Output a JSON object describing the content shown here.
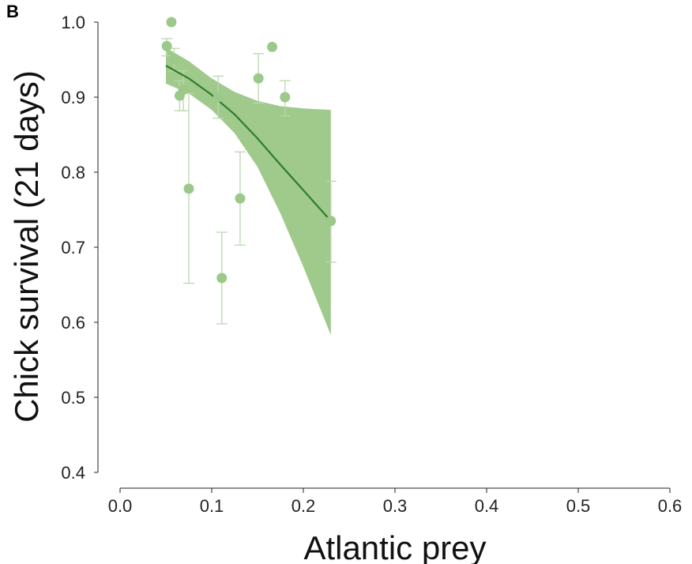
{
  "panel_label": "B",
  "chart_data": {
    "type": "scatter",
    "xlabel": "Atlantic prey",
    "ylabel": "Chick survival (21 days)",
    "xlim": [
      0.0,
      0.6
    ],
    "ylim": [
      0.4,
      1.0
    ],
    "x_ticks": [
      0.0,
      0.1,
      0.2,
      0.3,
      0.4,
      0.5,
      0.6
    ],
    "x_tick_labels": [
      "0.0",
      "0.1",
      "0.2",
      "0.3",
      "0.4",
      "0.5",
      "0.6"
    ],
    "y_ticks": [
      0.4,
      0.5,
      0.6,
      0.7,
      0.8,
      0.9,
      1.0
    ],
    "y_tick_labels": [
      "0.4",
      "0.5",
      "0.6",
      "0.7",
      "0.8",
      "0.9",
      "1.0"
    ],
    "grid": false,
    "legend": "none",
    "colors": {
      "points": "#9cc98a",
      "errorbars": "#b9d8ad",
      "fit_line": "#2e7d2e",
      "ci_band": "#8fbf78"
    },
    "points": [
      {
        "x": 0.051,
        "y": 0.968,
        "ylow": 0.955,
        "yhigh": 0.978
      },
      {
        "x": 0.056,
        "y": 1.0,
        "ylow": 1.0,
        "yhigh": 1.0
      },
      {
        "x": 0.059,
        "y": 0.951,
        "ylow": 0.935,
        "yhigh": 0.965
      },
      {
        "x": 0.065,
        "y": 0.902,
        "ylow": 0.882,
        "yhigh": 0.922
      },
      {
        "x": 0.069,
        "y": 0.91,
        "ylow": 0.882,
        "yhigh": 0.935
      },
      {
        "x": 0.075,
        "y": 0.778,
        "ylow": 0.652,
        "yhigh": 0.905
      },
      {
        "x": 0.107,
        "y": 0.9,
        "ylow": 0.872,
        "yhigh": 0.928
      },
      {
        "x": 0.111,
        "y": 0.659,
        "ylow": 0.598,
        "yhigh": 0.72
      },
      {
        "x": 0.131,
        "y": 0.765,
        "ylow": 0.703,
        "yhigh": 0.827
      },
      {
        "x": 0.151,
        "y": 0.925,
        "ylow": 0.892,
        "yhigh": 0.958
      },
      {
        "x": 0.166,
        "y": 0.967,
        "ylow": 0.967,
        "yhigh": 0.967
      },
      {
        "x": 0.18,
        "y": 0.9,
        "ylow": 0.875,
        "yhigh": 0.922
      },
      {
        "x": 0.23,
        "y": 0.735,
        "ylow": 0.68,
        "yhigh": 0.788
      }
    ],
    "fit": {
      "x": [
        0.05,
        0.075,
        0.1,
        0.125,
        0.15,
        0.175,
        0.2,
        0.23
      ],
      "y": [
        0.942,
        0.925,
        0.903,
        0.877,
        0.845,
        0.81,
        0.776,
        0.735
      ],
      "lower": [
        0.918,
        0.905,
        0.883,
        0.852,
        0.807,
        0.745,
        0.674,
        0.583
      ],
      "upper": [
        0.966,
        0.948,
        0.925,
        0.907,
        0.895,
        0.888,
        0.885,
        0.883
      ]
    }
  }
}
